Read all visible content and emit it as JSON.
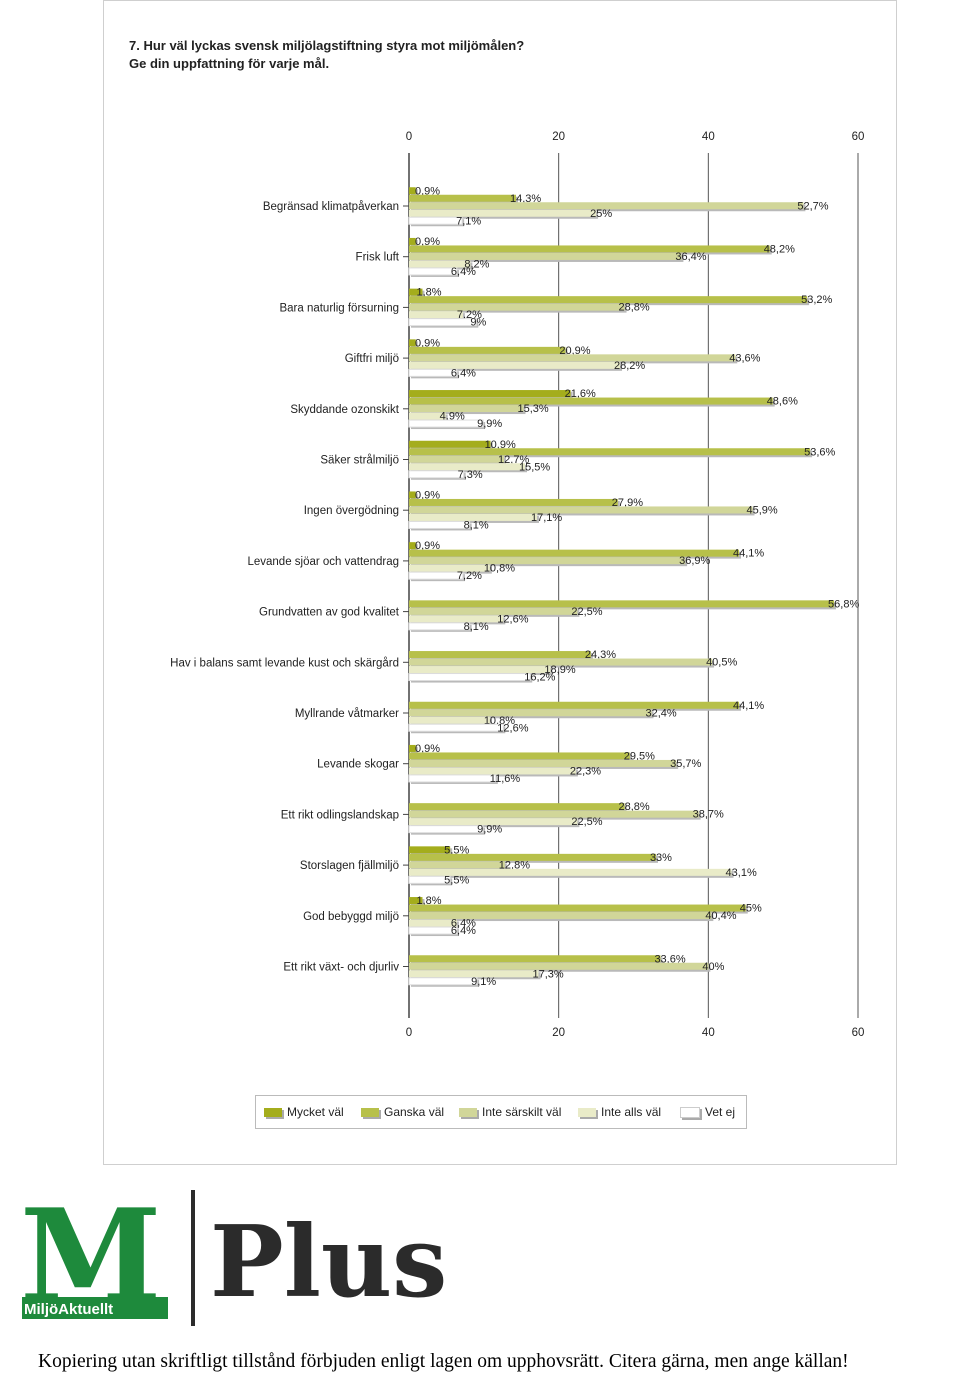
{
  "title_line1": "7. Hur väl lyckas svensk miljölagstiftning styra mot miljömålen?",
  "title_line2": "Ge din uppfattning för varje mål.",
  "chart_data": {
    "type": "bar",
    "orientation": "horizontal",
    "xlim": [
      0,
      60
    ],
    "xticks": [
      "0",
      "20",
      "40",
      "60"
    ],
    "grid": true,
    "legend_position": "bottom",
    "categories": [
      "Begränsad klimatpåverkan",
      "Frisk luft",
      "Bara naturlig försurning",
      "Giftfri miljö",
      "Skyddande ozonskikt",
      "Säker strålmiljö",
      "Ingen övergödning",
      "Levande sjöar och vattendrag",
      "Grundvatten av god kvalitet",
      "Hav i balans samt levande kust och skärgård",
      "Myllrande våtmarker",
      "Levande skogar",
      "Ett rikt odlingslandskap",
      "Storslagen fjällmiljö",
      "God bebyggd miljö",
      "Ett rikt växt- och djurliv"
    ],
    "series": [
      {
        "name": "Mycket väl",
        "color": "#a4ad1c",
        "values": [
          0.9,
          0.9,
          1.8,
          0.9,
          21.6,
          10.9,
          0.9,
          0.9,
          null,
          null,
          null,
          0.9,
          null,
          5.5,
          1.8,
          null
        ],
        "labels": [
          "0,9%",
          "0,9%",
          "1,8%",
          "0,9%",
          "21,6%",
          "10,9%",
          "0,9%",
          "0,9%",
          "",
          "",
          "",
          "0,9%",
          "",
          "5,5%",
          "1,8%",
          ""
        ]
      },
      {
        "name": "Ganska väl",
        "color": "#b7c04a",
        "values": [
          14.3,
          48.2,
          53.2,
          20.9,
          48.6,
          53.6,
          27.9,
          44.1,
          56.8,
          24.3,
          44.1,
          29.5,
          28.8,
          33.0,
          45.0,
          33.6
        ],
        "labels": [
          "14,3%",
          "48,2%",
          "53,2%",
          "20,9%",
          "48,6%",
          "53,6%",
          "27,9%",
          "44,1%",
          "56,8%",
          "24,3%",
          "44,1%",
          "29,5%",
          "28,8%",
          "33%",
          "45%",
          "33,6%"
        ]
      },
      {
        "name": "Inte särskilt väl",
        "color": "#d1d699",
        "values": [
          52.7,
          36.4,
          28.8,
          43.6,
          15.3,
          12.7,
          45.9,
          36.9,
          22.5,
          40.5,
          32.4,
          35.7,
          38.7,
          12.8,
          40.4,
          40.0
        ],
        "labels": [
          "52,7%",
          "36,4%",
          "28,8%",
          "43,6%",
          "15,3%",
          "12,7%",
          "45,9%",
          "36,9%",
          "22,5%",
          "40,5%",
          "32,4%",
          "35,7%",
          "38,7%",
          "12,8%",
          "40,4%",
          "40%"
        ]
      },
      {
        "name": "Inte alls väl",
        "color": "#e9ebc8",
        "values": [
          25.0,
          8.2,
          7.2,
          28.2,
          4.9,
          15.5,
          17.1,
          10.8,
          12.6,
          18.9,
          10.8,
          22.3,
          22.5,
          43.1,
          6.4,
          17.3
        ],
        "labels": [
          "25%",
          "8,2%",
          "7,2%",
          "28,2%",
          "4,9%",
          "15,5%",
          "17,1%",
          "10,8%",
          "12,6%",
          "18,9%",
          "10,8%",
          "22,3%",
          "22,5%",
          "43,1%",
          "6,4%",
          "17,3%"
        ]
      },
      {
        "name": "Vet ej",
        "color": "#ffffff",
        "values": [
          7.1,
          6.4,
          9.0,
          6.4,
          9.9,
          7.3,
          8.1,
          7.2,
          8.1,
          16.2,
          12.6,
          11.6,
          9.9,
          5.5,
          6.4,
          9.1
        ],
        "labels": [
          "7,1%",
          "6,4%",
          "9%",
          "6,4%",
          "9,9%",
          "7,3%",
          "8,1%",
          "7,2%",
          "8,1%",
          "16,2%",
          "12,6%",
          "11,6%",
          "9,9%",
          "5,5%",
          "6,4%",
          "9,1%"
        ]
      }
    ]
  },
  "legend_title_hidden": "",
  "footer": "Kopiering utan skriftligt tillstånd förbjuden enligt lagen om upphovsrätt. Citera gärna, men ange källan!",
  "logo": {
    "m_letter": "M",
    "brand_small": "MiljöAktuellt",
    "plus_word": "Plus",
    "green": "#1e8a3c",
    "dark": "#2b2b2b"
  }
}
